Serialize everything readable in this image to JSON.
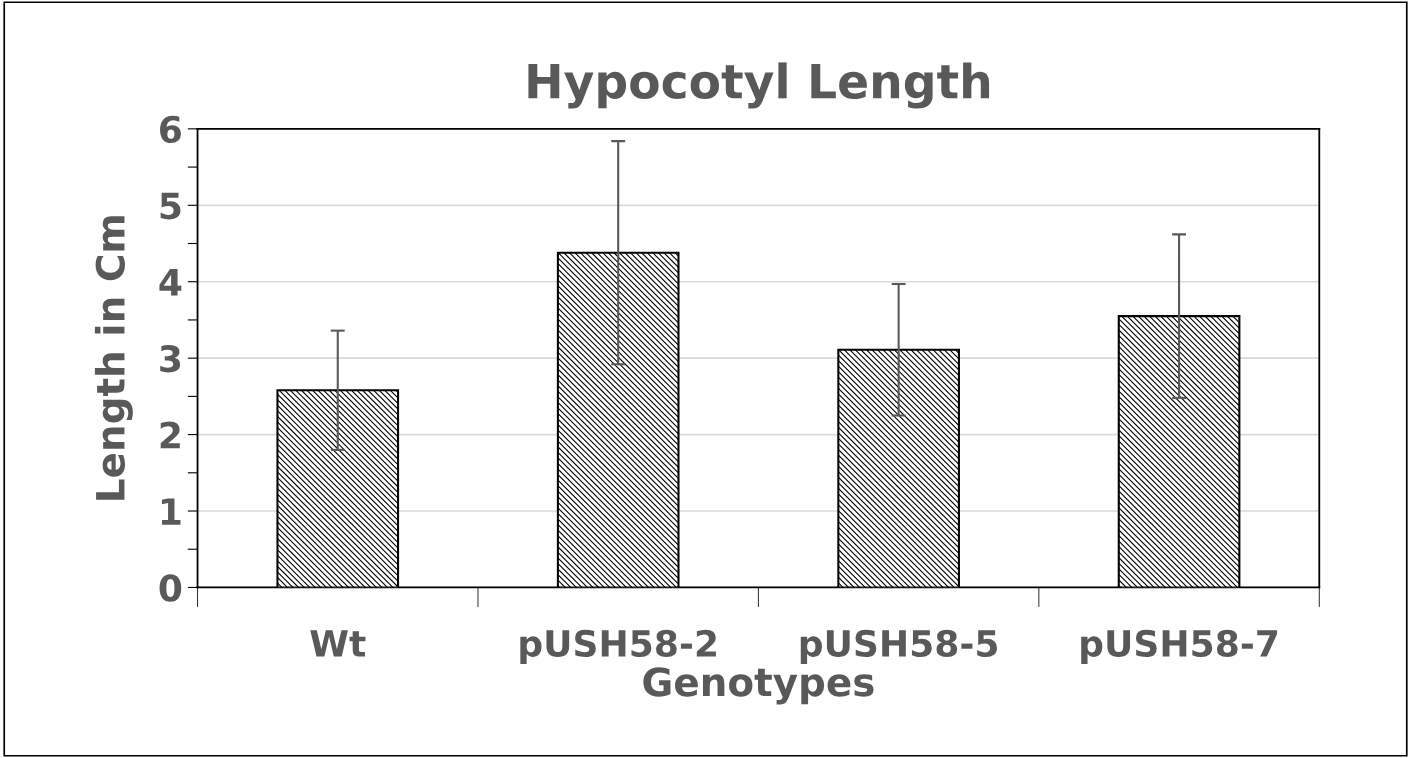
{
  "chart_data": {
    "type": "bar",
    "title": "Hypocotyl Length",
    "xlabel": "Genotypes",
    "ylabel": "Length in Cm",
    "categories": [
      "Wt",
      "pUSH58-2",
      "pUSH58-5",
      "pUSH58-7"
    ],
    "values": [
      2.58,
      4.38,
      3.11,
      3.55
    ],
    "errors": [
      0.78,
      1.46,
      0.86,
      1.07
    ],
    "color": "#000000",
    "ylim": [
      0,
      6
    ],
    "yticks": [
      0,
      {
        "value": 0.5,
        "label": null
      },
      1,
      {
        "value": 1.5,
        "label": null
      },
      2,
      {
        "value": 2.5,
        "label": null
      },
      3,
      {
        "value": 3.5,
        "label": null
      },
      4,
      {
        "value": 4.5,
        "label": null
      },
      5,
      {
        "value": 5.5,
        "label": null
      },
      6
    ],
    "grid": "y"
  }
}
